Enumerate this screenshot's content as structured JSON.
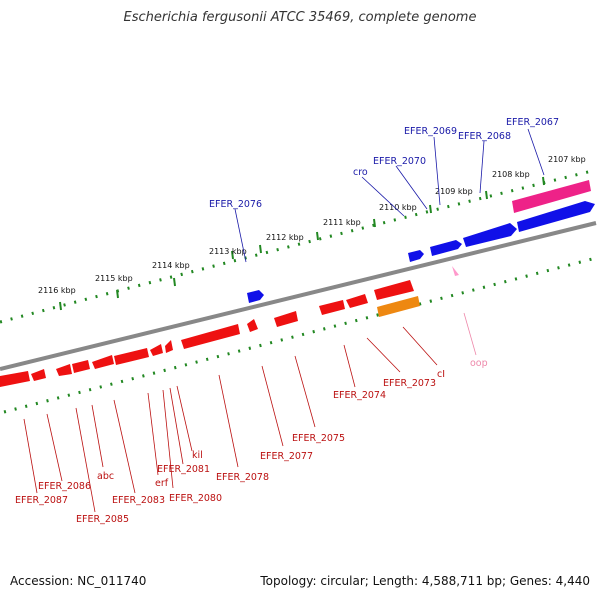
{
  "title": "Escherichia fergusonii ATCC 35469, complete genome",
  "accession": "Accession: NC_011740",
  "topology": "Topology: circular; Length: 4,588,711 bp; Genes: 4,440",
  "colors": {
    "forward": "#1010e8",
    "reverse": "#ee1111",
    "rrna": "#ee2288",
    "misc": "#ee8811",
    "pseudo": "#ff99cc",
    "backbone": "#888888",
    "ruler": "#228822",
    "fwd_label": "#1a1aa8",
    "rev_label": "#bb1111",
    "pseudo_label": "#ee88aa"
  },
  "ruler_ticks": [
    {
      "label": "2107 kbp"
    },
    {
      "label": "2108 kbp"
    },
    {
      "label": "2109 kbp"
    },
    {
      "label": "2110 kbp"
    },
    {
      "label": "2111 kbp"
    },
    {
      "label": "2112 kbp"
    },
    {
      "label": "2113 kbp"
    },
    {
      "label": "2114 kbp"
    },
    {
      "label": "2115 kbp"
    },
    {
      "label": "2116 kbp"
    }
  ],
  "forward_labels": [
    "EFER_2067",
    "EFER_2068",
    "EFER_2069",
    "EFER_2070",
    "cro",
    "EFER_2076"
  ],
  "reverse_labels": [
    "cI",
    "EFER_2073",
    "EFER_2074",
    "EFER_2075",
    "EFER_2077",
    "EFER_2078",
    "kil",
    "EFER_2081",
    "EFER_2080",
    "erf",
    "EFER_2083",
    "abc",
    "EFER_2085",
    "EFER_2086",
    "EFER_2087"
  ],
  "pseudo_labels": [
    "oop"
  ]
}
